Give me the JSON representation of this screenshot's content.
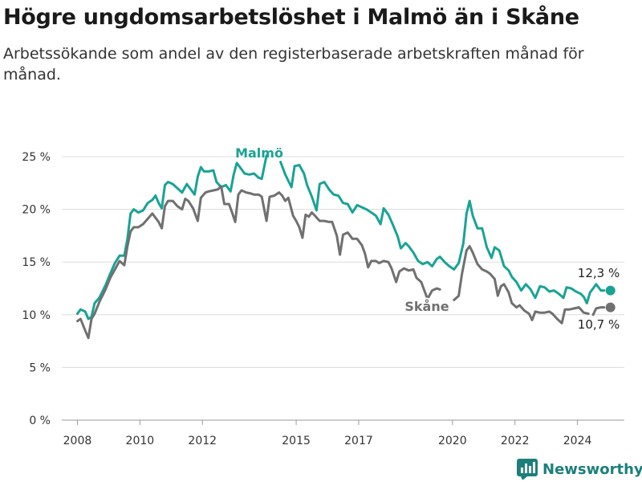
{
  "title": "Högre ungdomsarbetslöshet i Malmö än i Skåne",
  "subtitle": "Arbetssökande som andel av den registerbaserade arbetskraften månad för månad.",
  "brand": "Newsworthy",
  "colors": {
    "malmo": "#1aa394",
    "skane": "#707070",
    "grid": "#dddddd",
    "brand": "#1d7f7a"
  },
  "chart_data": {
    "type": "line",
    "ylim": [
      0,
      25
    ],
    "xlim": [
      2007.5,
      2025.5
    ],
    "yticks": [
      0,
      5,
      10,
      15,
      20,
      25
    ],
    "ytick_labels": [
      "0 %",
      "5 %",
      "10 %",
      "15 %",
      "20 %",
      "25 %"
    ],
    "xticks": [
      2008,
      2010,
      2012,
      2015,
      2017,
      2020,
      2022,
      2024
    ],
    "xtick_labels": [
      "2008",
      "2010",
      "2012",
      "2015",
      "2017",
      "2020",
      "2022",
      "2024"
    ],
    "grid": true,
    "series": [
      {
        "name": "Malmö",
        "end_value_label": "12,3 %",
        "points": [
          [
            2008.0,
            10.1
          ],
          [
            2008.1,
            10.5
          ],
          [
            2008.25,
            10.3
          ],
          [
            2008.35,
            9.6
          ],
          [
            2008.45,
            9.8
          ],
          [
            2008.55,
            11.1
          ],
          [
            2008.7,
            11.6
          ],
          [
            2008.9,
            12.8
          ],
          [
            2009.05,
            13.9
          ],
          [
            2009.2,
            14.9
          ],
          [
            2009.35,
            15.6
          ],
          [
            2009.5,
            15.6
          ],
          [
            2009.6,
            17.2
          ],
          [
            2009.7,
            19.6
          ],
          [
            2009.8,
            20.0
          ],
          [
            2009.95,
            19.7
          ],
          [
            2010.1,
            19.9
          ],
          [
            2010.25,
            20.6
          ],
          [
            2010.4,
            20.9
          ],
          [
            2010.5,
            21.3
          ],
          [
            2010.6,
            20.6
          ],
          [
            2010.7,
            20.1
          ],
          [
            2010.8,
            22.3
          ],
          [
            2010.9,
            22.6
          ],
          [
            2011.05,
            22.4
          ],
          [
            2011.2,
            22.0
          ],
          [
            2011.35,
            21.6
          ],
          [
            2011.5,
            22.4
          ],
          [
            2011.6,
            22.0
          ],
          [
            2011.75,
            21.4
          ],
          [
            2011.85,
            23.1
          ],
          [
            2011.95,
            24.0
          ],
          [
            2012.05,
            23.6
          ],
          [
            2012.2,
            23.6
          ],
          [
            2012.35,
            23.7
          ],
          [
            2012.45,
            22.6
          ],
          [
            2012.6,
            22.1
          ],
          [
            2012.75,
            22.3
          ],
          [
            2012.9,
            21.7
          ],
          [
            2013.0,
            23.3
          ],
          [
            2013.1,
            24.4
          ],
          [
            2013.2,
            24.0
          ],
          [
            2013.35,
            23.4
          ],
          [
            2013.5,
            23.3
          ],
          [
            2013.65,
            23.4
          ],
          [
            2013.8,
            23.0
          ],
          [
            2013.9,
            22.9
          ],
          [
            2014.05,
            25.1
          ]
        ],
        "points_b": [
          [
            2014.5,
            24.5
          ],
          [
            2014.65,
            23.3
          ],
          [
            2014.85,
            22.1
          ],
          [
            2014.95,
            24.1
          ],
          [
            2015.1,
            24.2
          ],
          [
            2015.25,
            23.4
          ],
          [
            2015.35,
            22.3
          ],
          [
            2015.5,
            21.2
          ],
          [
            2015.65,
            19.9
          ],
          [
            2015.75,
            22.4
          ],
          [
            2015.9,
            22.6
          ],
          [
            2016.05,
            21.9
          ],
          [
            2016.2,
            21.4
          ],
          [
            2016.35,
            21.3
          ],
          [
            2016.5,
            20.6
          ],
          [
            2016.65,
            20.5
          ],
          [
            2016.8,
            19.7
          ],
          [
            2016.95,
            20.4
          ],
          [
            2017.1,
            20.2
          ],
          [
            2017.25,
            20.0
          ],
          [
            2017.4,
            19.7
          ],
          [
            2017.55,
            19.4
          ],
          [
            2017.7,
            18.6
          ],
          [
            2017.8,
            20.1
          ],
          [
            2017.95,
            19.5
          ],
          [
            2018.1,
            18.5
          ],
          [
            2018.25,
            17.4
          ],
          [
            2018.35,
            16.3
          ],
          [
            2018.5,
            16.8
          ],
          [
            2018.6,
            16.5
          ],
          [
            2018.75,
            15.9
          ],
          [
            2018.9,
            15.1
          ],
          [
            2019.05,
            14.8
          ],
          [
            2019.2,
            15.0
          ],
          [
            2019.35,
            14.6
          ],
          [
            2019.5,
            15.3
          ],
          [
            2019.6,
            15.5
          ],
          [
            2019.75,
            15.0
          ],
          [
            2019.9,
            14.6
          ],
          [
            2020.05,
            14.3
          ],
          [
            2020.2,
            14.9
          ],
          [
            2020.35,
            16.8
          ],
          [
            2020.45,
            19.6
          ],
          [
            2020.55,
            20.8
          ],
          [
            2020.65,
            19.4
          ],
          [
            2020.8,
            18.2
          ],
          [
            2020.95,
            18.2
          ],
          [
            2021.1,
            16.4
          ],
          [
            2021.25,
            15.4
          ],
          [
            2021.35,
            16.4
          ],
          [
            2021.5,
            16.1
          ],
          [
            2021.65,
            14.6
          ],
          [
            2021.8,
            14.2
          ],
          [
            2021.9,
            13.6
          ],
          [
            2022.05,
            13.1
          ],
          [
            2022.2,
            12.3
          ],
          [
            2022.35,
            12.9
          ],
          [
            2022.5,
            12.4
          ],
          [
            2022.65,
            11.6
          ],
          [
            2022.8,
            12.7
          ],
          [
            2022.95,
            12.6
          ],
          [
            2023.1,
            12.2
          ],
          [
            2023.25,
            12.3
          ],
          [
            2023.4,
            12.0
          ],
          [
            2023.55,
            11.6
          ],
          [
            2023.65,
            12.6
          ],
          [
            2023.8,
            12.5
          ],
          [
            2023.95,
            12.2
          ],
          [
            2024.1,
            12.0
          ],
          [
            2024.2,
            11.7
          ],
          [
            2024.3,
            11.1
          ],
          [
            2024.4,
            12.1
          ],
          [
            2024.5,
            12.5
          ],
          [
            2024.6,
            12.9
          ],
          [
            2024.75,
            12.3
          ],
          [
            2024.85,
            12.3
          ]
        ]
      },
      {
        "name": "Skåne",
        "end_value_label": "10,7 %",
        "points": [
          [
            2008.0,
            9.4
          ],
          [
            2008.1,
            9.6
          ],
          [
            2008.25,
            8.5
          ],
          [
            2008.35,
            7.8
          ],
          [
            2008.45,
            9.6
          ],
          [
            2008.55,
            10.1
          ],
          [
            2008.7,
            11.2
          ],
          [
            2008.9,
            12.4
          ],
          [
            2009.05,
            13.5
          ],
          [
            2009.2,
            14.3
          ],
          [
            2009.35,
            15.1
          ],
          [
            2009.5,
            14.7
          ],
          [
            2009.6,
            16.5
          ],
          [
            2009.7,
            17.9
          ],
          [
            2009.8,
            18.3
          ],
          [
            2009.95,
            18.3
          ],
          [
            2010.1,
            18.6
          ],
          [
            2010.25,
            19.1
          ],
          [
            2010.4,
            19.6
          ],
          [
            2010.5,
            19.2
          ],
          [
            2010.6,
            18.8
          ],
          [
            2010.7,
            18.2
          ],
          [
            2010.8,
            20.3
          ],
          [
            2010.9,
            20.8
          ],
          [
            2011.05,
            20.8
          ],
          [
            2011.2,
            20.3
          ],
          [
            2011.35,
            20.0
          ],
          [
            2011.45,
            21.0
          ],
          [
            2011.55,
            20.8
          ],
          [
            2011.7,
            20.1
          ],
          [
            2011.85,
            18.9
          ],
          [
            2011.95,
            21.1
          ],
          [
            2012.1,
            21.6
          ],
          [
            2012.2,
            21.7
          ],
          [
            2012.35,
            21.8
          ],
          [
            2012.5,
            21.9
          ],
          [
            2012.6,
            22.2
          ],
          [
            2012.7,
            20.5
          ],
          [
            2012.85,
            20.5
          ],
          [
            2012.95,
            19.7
          ],
          [
            2013.05,
            18.8
          ],
          [
            2013.15,
            21.4
          ],
          [
            2013.25,
            21.8
          ],
          [
            2013.4,
            21.6
          ],
          [
            2013.55,
            21.5
          ],
          [
            2013.65,
            21.4
          ],
          [
            2013.8,
            21.4
          ],
          [
            2013.9,
            21.2
          ],
          [
            2014.05,
            18.9
          ],
          [
            2014.15,
            21.2
          ],
          [
            2014.3,
            21.3
          ],
          [
            2014.45,
            21.6
          ],
          [
            2014.55,
            21.3
          ],
          [
            2014.65,
            20.8
          ],
          [
            2014.75,
            21.1
          ],
          [
            2014.9,
            19.4
          ],
          [
            2015.0,
            18.9
          ],
          [
            2015.1,
            18.3
          ],
          [
            2015.2,
            17.3
          ],
          [
            2015.3,
            19.5
          ],
          [
            2015.4,
            19.3
          ],
          [
            2015.5,
            19.7
          ],
          [
            2015.6,
            19.4
          ],
          [
            2015.75,
            18.9
          ],
          [
            2015.9,
            18.9
          ],
          [
            2016.05,
            18.8
          ],
          [
            2016.15,
            18.8
          ],
          [
            2016.3,
            17.5
          ],
          [
            2016.4,
            15.7
          ],
          [
            2016.5,
            17.6
          ],
          [
            2016.65,
            17.8
          ],
          [
            2016.8,
            17.2
          ],
          [
            2016.95,
            17.2
          ],
          [
            2017.1,
            16.6
          ],
          [
            2017.2,
            15.8
          ],
          [
            2017.3,
            14.5
          ],
          [
            2017.4,
            15.1
          ],
          [
            2017.55,
            15.1
          ],
          [
            2017.65,
            14.9
          ],
          [
            2017.8,
            15.1
          ],
          [
            2017.95,
            15.0
          ],
          [
            2018.05,
            14.4
          ],
          [
            2018.2,
            13.1
          ],
          [
            2018.3,
            14.1
          ],
          [
            2018.45,
            14.4
          ],
          [
            2018.6,
            14.2
          ],
          [
            2018.75,
            14.3
          ],
          [
            2018.85,
            13.5
          ],
          [
            2019.0,
            13.1
          ],
          [
            2019.1,
            12.3
          ],
          [
            2019.2,
            11.5
          ],
          [
            2019.35,
            12.3
          ],
          [
            2019.5,
            12.5
          ],
          [
            2019.6,
            12.4
          ]
        ],
        "points_b": [
          [
            2020.05,
            11.4
          ],
          [
            2020.2,
            11.8
          ],
          [
            2020.3,
            13.8
          ],
          [
            2020.45,
            16.1
          ],
          [
            2020.55,
            16.5
          ],
          [
            2020.65,
            15.9
          ],
          [
            2020.8,
            14.8
          ],
          [
            2020.95,
            14.3
          ],
          [
            2021.1,
            14.1
          ],
          [
            2021.2,
            13.9
          ],
          [
            2021.35,
            13.4
          ],
          [
            2021.45,
            11.8
          ],
          [
            2021.55,
            12.7
          ],
          [
            2021.65,
            12.9
          ],
          [
            2021.8,
            12.1
          ],
          [
            2021.9,
            11.1
          ],
          [
            2022.05,
            10.7
          ],
          [
            2022.15,
            10.9
          ],
          [
            2022.3,
            10.4
          ],
          [
            2022.45,
            10.1
          ],
          [
            2022.55,
            9.5
          ],
          [
            2022.65,
            10.3
          ],
          [
            2022.8,
            10.2
          ],
          [
            2022.95,
            10.2
          ],
          [
            2023.1,
            10.3
          ],
          [
            2023.2,
            10.1
          ],
          [
            2023.35,
            9.6
          ],
          [
            2023.5,
            9.2
          ],
          [
            2023.6,
            10.5
          ],
          [
            2023.75,
            10.5
          ],
          [
            2023.9,
            10.6
          ],
          [
            2024.05,
            10.7
          ],
          [
            2024.2,
            10.2
          ],
          [
            2024.35,
            10.1
          ]
        ],
        "points_c": [
          [
            2024.5,
            10.0
          ],
          [
            2024.6,
            10.6
          ],
          [
            2024.75,
            10.7
          ],
          [
            2024.85,
            10.7
          ]
        ]
      }
    ]
  }
}
